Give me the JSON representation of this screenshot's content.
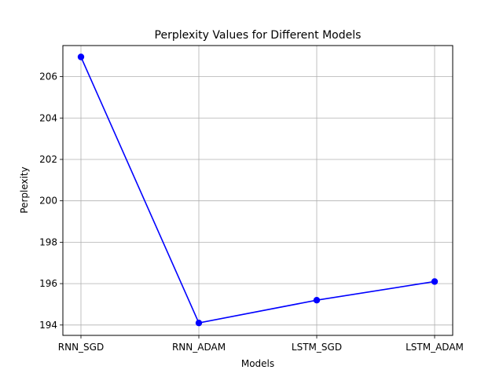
{
  "chart_data": {
    "type": "line",
    "title": "Perplexity Values for Different Models",
    "xlabel": "Models",
    "ylabel": "Perplexity",
    "categories": [
      "RNN_SGD",
      "RNN_ADAM",
      "LSTM_SGD",
      "LSTM_ADAM"
    ],
    "series": [
      {
        "values": [
          206.95,
          194.1,
          195.2,
          196.1
        ],
        "color": "#0000ff",
        "marker": "circle"
      }
    ],
    "ylim": [
      193.5,
      207.5
    ],
    "yticks": [
      194,
      196,
      198,
      200,
      202,
      204,
      206
    ],
    "grid": true
  }
}
